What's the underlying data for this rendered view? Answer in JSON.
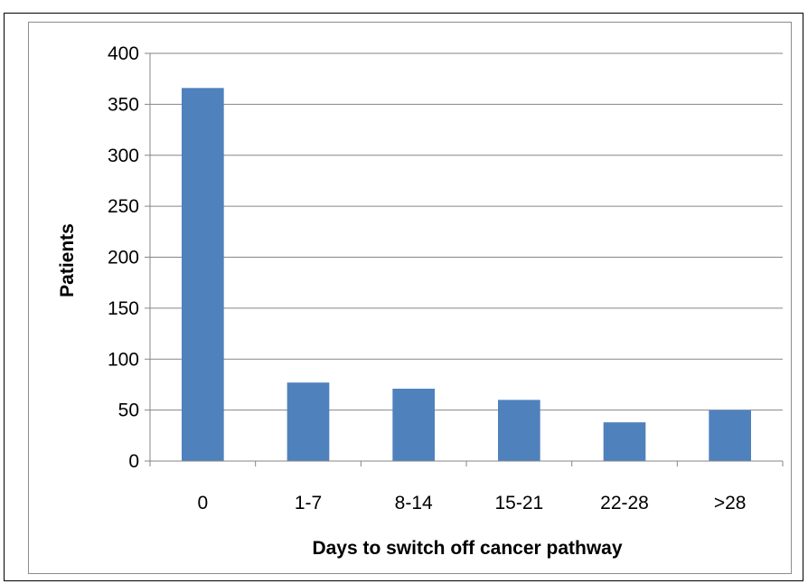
{
  "chart_data": {
    "type": "bar",
    "categories": [
      "0",
      "1-7",
      "8-14",
      "15-21",
      "22-28",
      ">28"
    ],
    "values": [
      366,
      77,
      71,
      60,
      38,
      50
    ],
    "title": "",
    "xlabel": "Days to switch off cancer pathway",
    "ylabel": "Patients",
    "ylim": [
      0,
      400
    ],
    "yticks": [
      "0",
      "50",
      "100",
      "150",
      "200",
      "250",
      "300",
      "350",
      "400"
    ],
    "grid": true,
    "legend": "none",
    "bar_color": "#4F81BD",
    "grid_color": "#868686"
  }
}
